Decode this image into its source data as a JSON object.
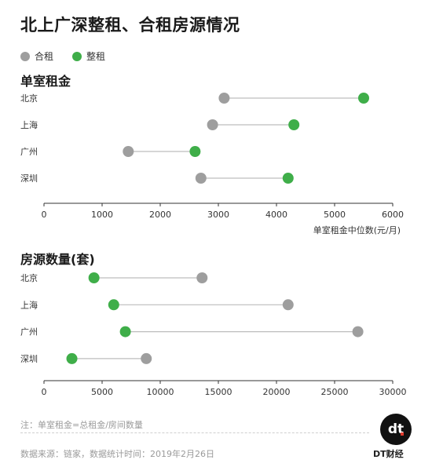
{
  "header": {
    "title": "北上广深整租、合租房源情况"
  },
  "legend": [
    {
      "label": "合租",
      "color": "#9e9e9e"
    },
    {
      "label": "整租",
      "color": "#3fae49"
    }
  ],
  "colors": {
    "shared": "#9e9e9e",
    "whole": "#3fae49",
    "axis": "#333333",
    "connector": "#bdbdbd"
  },
  "chart_data": [
    {
      "type": "dumbbell",
      "title": "单室租金",
      "xlabel": "单室租金中位数(元/月)",
      "categories": [
        "北京",
        "上海",
        "广州",
        "深圳"
      ],
      "xlim": [
        0,
        6000
      ],
      "ticks": [
        0,
        1000,
        2000,
        3000,
        4000,
        5000,
        6000
      ],
      "series": [
        {
          "name": "合租",
          "values": [
            3100,
            2900,
            1450,
            2700
          ]
        },
        {
          "name": "整租",
          "values": [
            5500,
            4300,
            2600,
            4200
          ]
        }
      ]
    },
    {
      "type": "dumbbell",
      "title": "房源数量(套)",
      "xlabel": "",
      "categories": [
        "北京",
        "上海",
        "广州",
        "深圳"
      ],
      "xlim": [
        0,
        30000
      ],
      "ticks": [
        0,
        5000,
        10000,
        15000,
        20000,
        25000,
        30000
      ],
      "series": [
        {
          "name": "合租",
          "values": [
            13600,
            21000,
            27000,
            8800
          ]
        },
        {
          "name": "整租",
          "values": [
            4300,
            6000,
            7000,
            2400
          ]
        }
      ]
    }
  ],
  "footer": {
    "note": "注：单室租金=总租金/房间数量",
    "source": "数据来源：链家，数据统计时间：2019年2月26日",
    "brand": "DT财经",
    "logo_text": "dt"
  }
}
